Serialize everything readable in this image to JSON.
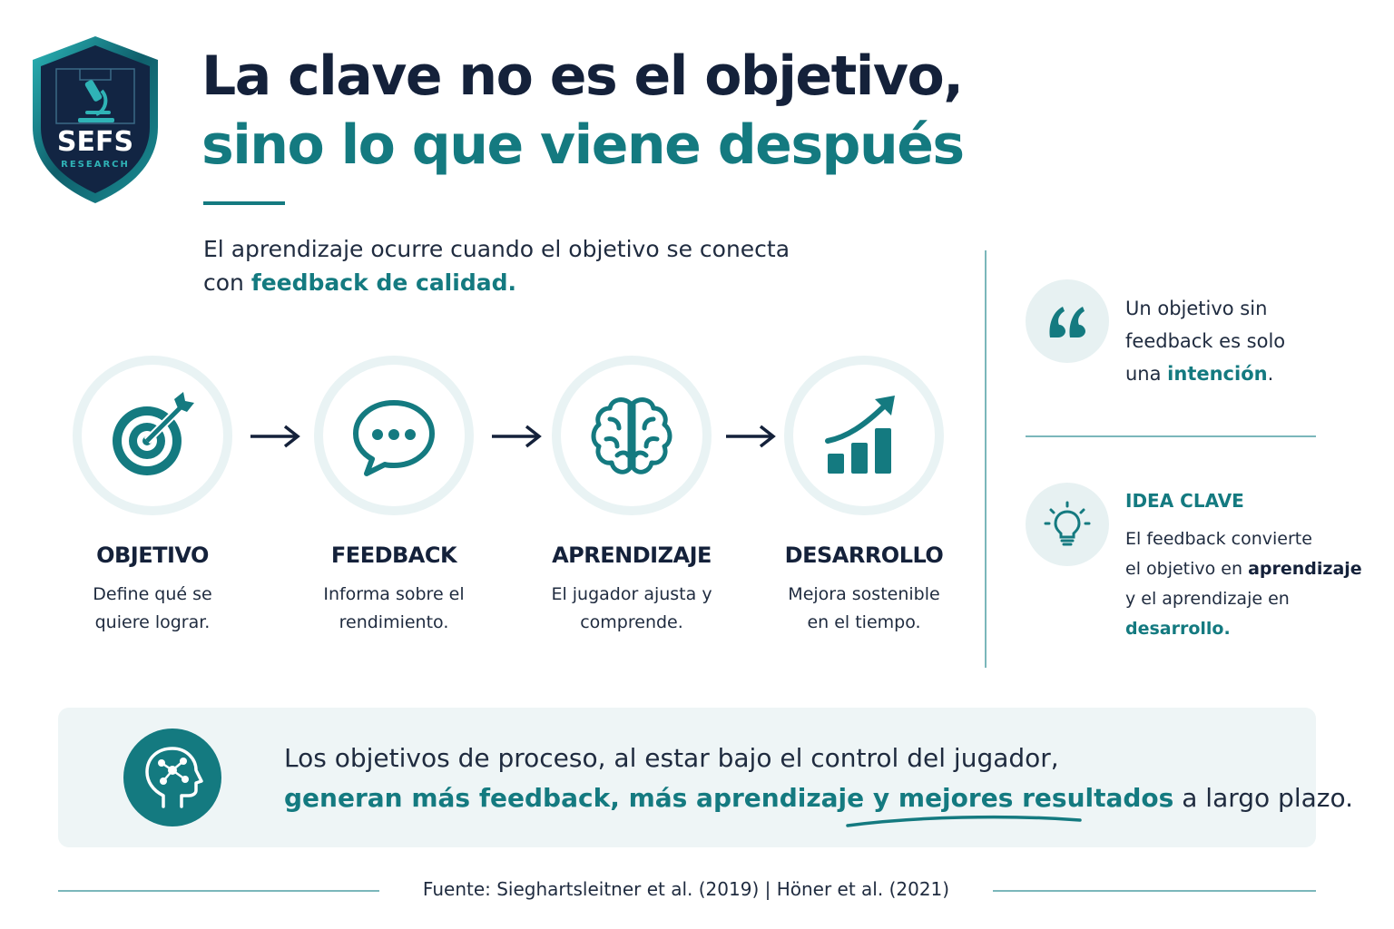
{
  "logo": {
    "text": "SEFS",
    "subtext": "RESEARCH"
  },
  "header": {
    "title_line1": "La clave no es el objetivo,",
    "title_line2": "sino lo que viene después"
  },
  "intro": {
    "line1": "El aprendizaje ocurre cuando el objetivo se conecta",
    "line2_prefix": "con ",
    "line2_accent": "feedback de calidad."
  },
  "steps": [
    {
      "title": "OBJETIVO",
      "desc1": "Define qué se",
      "desc2": "quiere lograr.",
      "icon": "target-icon"
    },
    {
      "title": "FEEDBACK",
      "desc1": "Informa sobre el",
      "desc2": "rendimiento.",
      "icon": "speech-bubble-icon"
    },
    {
      "title": "APRENDIZAJE",
      "desc1": "El jugador ajusta y",
      "desc2": "comprende.",
      "icon": "brain-icon"
    },
    {
      "title": "DESARROLLO",
      "desc1": "Mejora sostenible",
      "desc2": "en el tiempo.",
      "icon": "growth-chart-icon"
    }
  ],
  "quote": {
    "line1": "Un objetivo sin",
    "line2": "feedback es solo",
    "line3_prefix": "una ",
    "line3_accent": "intención",
    "line3_suffix": "."
  },
  "idea": {
    "label": "IDEA CLAVE",
    "line1": "El feedback convierte",
    "line2_prefix": "el objetivo en ",
    "line2_strong": "aprendizaje",
    "line3": "y el aprendizaje en",
    "line4_accent": "desarrollo."
  },
  "banner": {
    "line1": "Los objetivos de proceso, al estar bajo el control del jugador,",
    "line2_accent": "generan más feedback, más aprendizaje y mejores resultados",
    "line2_suffix": " a largo plazo."
  },
  "footer": {
    "source": "Fuente: Sieghartsleitner et al. (2019)  |  Höner et al. (2021)"
  },
  "colors": {
    "teal": "#147a80",
    "navy": "#14213a",
    "light_teal": "#e9f3f4"
  }
}
